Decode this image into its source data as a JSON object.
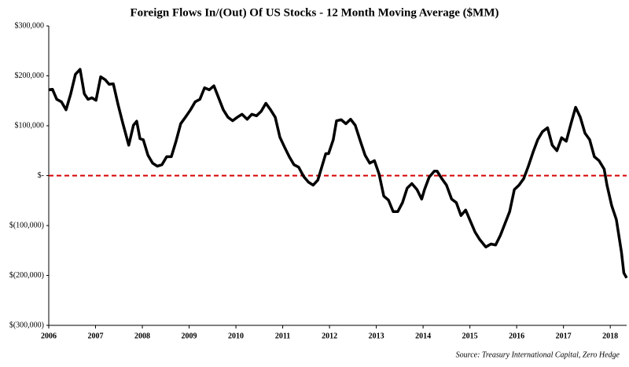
{
  "chart_data": {
    "type": "line",
    "title": "Foreign Flows In/(Out) Of  US Stocks  - 12 Month Moving Average ($MM)",
    "source": "Source: Treasury International Capital, Zero Hedge",
    "xlim": [
      2006,
      2018.35
    ],
    "xticks": [
      2006,
      2007,
      2008,
      2009,
      2010,
      2011,
      2012,
      2013,
      2014,
      2015,
      2016,
      2017,
      2018
    ],
    "ylim": [
      -300000,
      300000
    ],
    "yticks": [
      {
        "value": -300000,
        "label": "$(300,000)"
      },
      {
        "value": -200000,
        "label": "$(200,000)"
      },
      {
        "value": -100000,
        "label": "$(100,000)"
      },
      {
        "value": 0,
        "label": "$-"
      },
      {
        "value": 100000,
        "label": "$100,000"
      },
      {
        "value": 200000,
        "label": "$200,000"
      },
      {
        "value": 300000,
        "label": "$300,000"
      }
    ],
    "reference_line": {
      "value": 0,
      "color": "#d40000"
    },
    "series": [
      {
        "name": "Foreign Flows",
        "color": "#000000",
        "x": [
          2006.0,
          2006.08,
          2006.17,
          2006.27,
          2006.37,
          2006.47,
          2006.57,
          2006.67,
          2006.76,
          2006.84,
          2006.92,
          2007.01,
          2007.11,
          2007.21,
          2007.29,
          2007.38,
          2007.48,
          2007.58,
          2007.71,
          2007.81,
          2007.88,
          2007.95,
          2008.02,
          2008.12,
          2008.22,
          2008.32,
          2008.42,
          2008.52,
          2008.62,
          2008.72,
          2008.82,
          2008.92,
          2009.03,
          2009.13,
          2009.23,
          2009.33,
          2009.43,
          2009.53,
          2009.63,
          2009.73,
          2009.83,
          2009.93,
          2010.03,
          2010.13,
          2010.24,
          2010.34,
          2010.44,
          2010.54,
          2010.64,
          2010.74,
          2010.84,
          2010.94,
          2011.04,
          2011.14,
          2011.24,
          2011.34,
          2011.45,
          2011.55,
          2011.65,
          2011.75,
          2011.85,
          2011.92,
          2011.98,
          2012.08,
          2012.15,
          2012.25,
          2012.35,
          2012.45,
          2012.55,
          2012.66,
          2012.76,
          2012.86,
          2012.96,
          2013.06,
          2013.16,
          2013.26,
          2013.36,
          2013.46,
          2013.56,
          2013.66,
          2013.76,
          2013.87,
          2013.97,
          2014.03,
          2014.13,
          2014.24,
          2014.3,
          2014.4,
          2014.5,
          2014.61,
          2014.71,
          2014.81,
          2014.91,
          2015.01,
          2015.11,
          2015.21,
          2015.34,
          2015.45,
          2015.55,
          2015.65,
          2015.75,
          2015.85,
          2015.95,
          2016.05,
          2016.15,
          2016.25,
          2016.35,
          2016.45,
          2016.55,
          2016.66,
          2016.76,
          2016.86,
          2016.96,
          2017.06,
          2017.16,
          2017.26,
          2017.36,
          2017.46,
          2017.56,
          2017.66,
          2017.76,
          2017.87,
          2017.93,
          2018.03,
          2018.13,
          2018.24,
          2018.29,
          2018.35
        ],
        "values": [
          172000,
          173000,
          153000,
          148000,
          132000,
          164000,
          203000,
          213000,
          164000,
          153000,
          156000,
          151000,
          198000,
          192000,
          183000,
          184000,
          143000,
          106000,
          61000,
          101000,
          109000,
          74000,
          72000,
          41000,
          25000,
          19000,
          22000,
          38000,
          38000,
          69000,
          104000,
          117000,
          132000,
          148000,
          153000,
          176000,
          172000,
          180000,
          156000,
          132000,
          117000,
          110000,
          117000,
          123000,
          113000,
          123000,
          120000,
          129000,
          145000,
          132000,
          117000,
          77000,
          57000,
          38000,
          22000,
          17000,
          -2000,
          -13000,
          -19000,
          -9000,
          22000,
          44000,
          44000,
          72000,
          110000,
          112000,
          104000,
          113000,
          101000,
          69000,
          41000,
          25000,
          30000,
          3000,
          -41000,
          -49000,
          -72000,
          -72000,
          -54000,
          -25000,
          -16000,
          -28000,
          -47000,
          -28000,
          -3000,
          9000,
          9000,
          -6000,
          -19000,
          -47000,
          -54000,
          -80000,
          -69000,
          -91000,
          -113000,
          -128000,
          -143000,
          -137000,
          -139000,
          -120000,
          -96000,
          -72000,
          -28000,
          -19000,
          -6000,
          19000,
          47000,
          72000,
          88000,
          96000,
          61000,
          50000,
          76000,
          69000,
          104000,
          137000,
          117000,
          85000,
          72000,
          38000,
          30000,
          13000,
          -19000,
          -60000,
          -88000,
          -154000,
          -195000,
          -205000
        ]
      }
    ]
  }
}
